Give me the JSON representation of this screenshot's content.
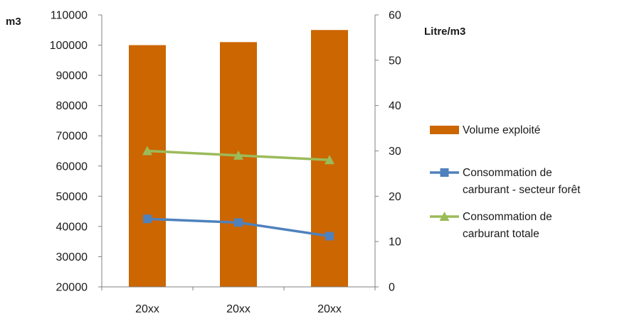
{
  "chart_data": {
    "type": "bar",
    "categories": [
      "20xx",
      "20xx",
      "20xx"
    ],
    "y_left": {
      "label": "m3",
      "min": 20000,
      "max": 110000,
      "step": 10000,
      "ticks": [
        "20000",
        "30000",
        "40000",
        "50000",
        "60000",
        "70000",
        "80000",
        "90000",
        "100000",
        "110000"
      ]
    },
    "y_right": {
      "label": "Litre/m3",
      "min": 0,
      "max": 60,
      "step": 10,
      "ticks": [
        "0",
        "10",
        "20",
        "30",
        "40",
        "50",
        "60"
      ]
    },
    "series": [
      {
        "name": "Volume exploité",
        "kind": "bar",
        "axis": "left",
        "color": "#CC6600",
        "values": [
          100000,
          101000,
          105000
        ]
      },
      {
        "name": "Consommation de carburant - secteur forêt",
        "kind": "line",
        "axis": "right",
        "color": "#4F81BD",
        "marker": "square",
        "values": [
          15,
          14.2,
          11.2
        ],
        "legend_lines": [
          "Consommation de",
          "carburant - secteur forêt"
        ]
      },
      {
        "name": "Consommation de carburant totale",
        "kind": "line",
        "axis": "right",
        "color": "#9BBB59",
        "marker": "triangle",
        "values": [
          30,
          29,
          28
        ],
        "legend_lines": [
          "Consommation de",
          "carburant totale"
        ]
      }
    ],
    "grid": false,
    "legend_position": "right"
  }
}
